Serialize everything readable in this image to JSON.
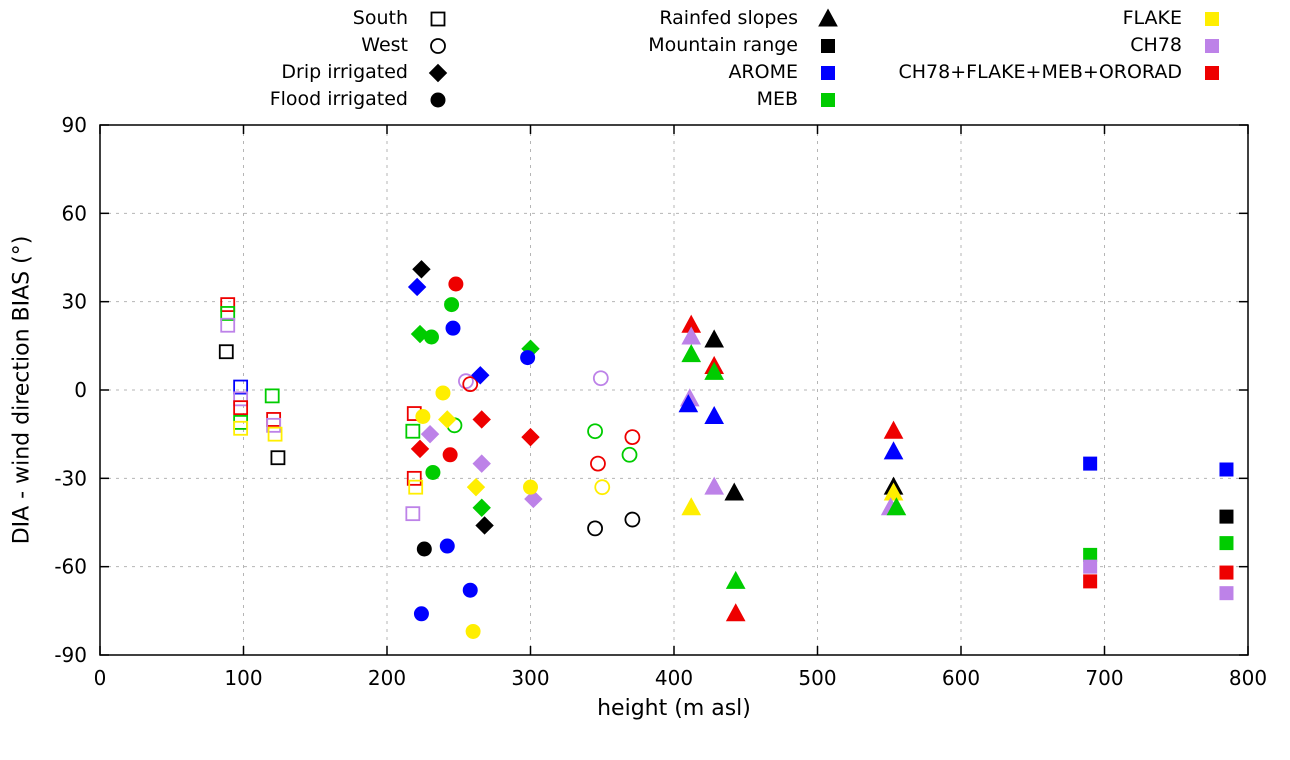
{
  "chart_data": {
    "type": "scatter",
    "title": "",
    "xlabel": "height (m asl)",
    "ylabel": "DIA - wind direction BIAS (°)",
    "xlim": [
      0,
      800
    ],
    "ylim": [
      -90,
      90
    ],
    "xticks": [
      0,
      100,
      200,
      300,
      400,
      500,
      600,
      700,
      800
    ],
    "yticks": [
      -90,
      -60,
      -30,
      0,
      30,
      60,
      90
    ],
    "grid": true,
    "legend_position": "top",
    "colors": {
      "black": "#000000",
      "red": "#ee0000",
      "green": "#00cc00",
      "blue": "#0000ff",
      "yellow": "#ffee00",
      "violet": "#bd82e8"
    },
    "legend": {
      "columns": [
        {
          "entries": [
            {
              "label": "South",
              "shape": "square",
              "fill": "open",
              "color": "black"
            },
            {
              "label": "West",
              "shape": "circle",
              "fill": "open",
              "color": "black"
            },
            {
              "label": "Drip irrigated",
              "shape": "diamond",
              "fill": "filled",
              "color": "black"
            },
            {
              "label": "Flood irrigated",
              "shape": "circle",
              "fill": "filled",
              "color": "black"
            }
          ]
        },
        {
          "entries": [
            {
              "label": "Rainfed slopes",
              "shape": "triangle",
              "fill": "filled",
              "color": "black"
            },
            {
              "label": "Mountain range",
              "shape": "square",
              "fill": "filled",
              "color": "black"
            },
            {
              "label": "AROME",
              "shape": "square",
              "fill": "filled",
              "color": "blue"
            },
            {
              "label": "MEB",
              "shape": "square",
              "fill": "filled",
              "color": "green"
            }
          ]
        },
        {
          "entries": [
            {
              "label": "FLAKE",
              "shape": "square",
              "fill": "filled",
              "color": "yellow"
            },
            {
              "label": "CH78",
              "shape": "square",
              "fill": "filled",
              "color": "violet"
            },
            {
              "label": "CH78+FLAKE+MEB+ORORAD",
              "shape": "square",
              "fill": "filled",
              "color": "red"
            }
          ]
        }
      ]
    },
    "points": [
      {
        "x": 89,
        "y": 29,
        "shape": "square",
        "fill": "open",
        "color": "red"
      },
      {
        "x": 89,
        "y": 26,
        "shape": "square",
        "fill": "open",
        "color": "green"
      },
      {
        "x": 89,
        "y": 22,
        "shape": "square",
        "fill": "open",
        "color": "violet"
      },
      {
        "x": 88,
        "y": 13,
        "shape": "square",
        "fill": "open",
        "color": "black"
      },
      {
        "x": 98,
        "y": 1,
        "shape": "square",
        "fill": "open",
        "color": "blue"
      },
      {
        "x": 98,
        "y": -3,
        "shape": "square",
        "fill": "open",
        "color": "violet"
      },
      {
        "x": 98,
        "y": -6,
        "shape": "square",
        "fill": "open",
        "color": "red"
      },
      {
        "x": 98,
        "y": -11,
        "shape": "square",
        "fill": "open",
        "color": "green"
      },
      {
        "x": 98,
        "y": -13,
        "shape": "square",
        "fill": "open",
        "color": "yellow"
      },
      {
        "x": 120,
        "y": -2,
        "shape": "square",
        "fill": "open",
        "color": "green"
      },
      {
        "x": 121,
        "y": -10,
        "shape": "square",
        "fill": "open",
        "color": "red"
      },
      {
        "x": 121,
        "y": -12,
        "shape": "square",
        "fill": "open",
        "color": "violet"
      },
      {
        "x": 122,
        "y": -15,
        "shape": "square",
        "fill": "open",
        "color": "yellow"
      },
      {
        "x": 124,
        "y": -23,
        "shape": "square",
        "fill": "open",
        "color": "black"
      },
      {
        "x": 219,
        "y": -8,
        "shape": "square",
        "fill": "open",
        "color": "red"
      },
      {
        "x": 218,
        "y": -14,
        "shape": "square",
        "fill": "open",
        "color": "green"
      },
      {
        "x": 219,
        "y": -30,
        "shape": "square",
        "fill": "open",
        "color": "red"
      },
      {
        "x": 220,
        "y": -33,
        "shape": "square",
        "fill": "open",
        "color": "yellow"
      },
      {
        "x": 218,
        "y": -42,
        "shape": "square",
        "fill": "open",
        "color": "violet"
      },
      {
        "x": 247,
        "y": -12,
        "shape": "circle",
        "fill": "open",
        "color": "green"
      },
      {
        "x": 255,
        "y": 3,
        "shape": "circle",
        "fill": "open",
        "color": "violet"
      },
      {
        "x": 258,
        "y": 2,
        "shape": "circle",
        "fill": "open",
        "color": "red"
      },
      {
        "x": 349,
        "y": 4,
        "shape": "circle",
        "fill": "open",
        "color": "violet"
      },
      {
        "x": 345,
        "y": -14,
        "shape": "circle",
        "fill": "open",
        "color": "green"
      },
      {
        "x": 347,
        "y": -25,
        "shape": "circle",
        "fill": "open",
        "color": "red"
      },
      {
        "x": 350,
        "y": -33,
        "shape": "circle",
        "fill": "open",
        "color": "yellow"
      },
      {
        "x": 345,
        "y": -47,
        "shape": "circle",
        "fill": "open",
        "color": "black"
      },
      {
        "x": 371,
        "y": -16,
        "shape": "circle",
        "fill": "open",
        "color": "red"
      },
      {
        "x": 369,
        "y": -22,
        "shape": "circle",
        "fill": "open",
        "color": "green"
      },
      {
        "x": 371,
        "y": -44,
        "shape": "circle",
        "fill": "open",
        "color": "black"
      },
      {
        "x": 224,
        "y": 41,
        "shape": "diamond",
        "fill": "filled",
        "color": "black"
      },
      {
        "x": 221,
        "y": 35,
        "shape": "diamond",
        "fill": "filled",
        "color": "blue"
      },
      {
        "x": 223,
        "y": 19,
        "shape": "diamond",
        "fill": "filled",
        "color": "green"
      },
      {
        "x": 230,
        "y": -15,
        "shape": "diamond",
        "fill": "filled",
        "color": "violet"
      },
      {
        "x": 223,
        "y": -20,
        "shape": "diamond",
        "fill": "filled",
        "color": "red"
      },
      {
        "x": 242,
        "y": -10,
        "shape": "diamond",
        "fill": "filled",
        "color": "yellow"
      },
      {
        "x": 265,
        "y": 5,
        "shape": "diamond",
        "fill": "filled",
        "color": "blue"
      },
      {
        "x": 266,
        "y": -10,
        "shape": "diamond",
        "fill": "filled",
        "color": "red"
      },
      {
        "x": 266,
        "y": -25,
        "shape": "diamond",
        "fill": "filled",
        "color": "violet"
      },
      {
        "x": 262,
        "y": -33,
        "shape": "diamond",
        "fill": "filled",
        "color": "yellow"
      },
      {
        "x": 266,
        "y": -40,
        "shape": "diamond",
        "fill": "filled",
        "color": "green"
      },
      {
        "x": 268,
        "y": -46,
        "shape": "diamond",
        "fill": "filled",
        "color": "black"
      },
      {
        "x": 300,
        "y": 14,
        "shape": "diamond",
        "fill": "filled",
        "color": "green"
      },
      {
        "x": 300,
        "y": -16,
        "shape": "diamond",
        "fill": "filled",
        "color": "red"
      },
      {
        "x": 302,
        "y": -37,
        "shape": "diamond",
        "fill": "filled",
        "color": "violet"
      },
      {
        "x": 231,
        "y": 18,
        "shape": "circle",
        "fill": "filled",
        "color": "green"
      },
      {
        "x": 225,
        "y": -9,
        "shape": "circle",
        "fill": "filled",
        "color": "yellow"
      },
      {
        "x": 232,
        "y": -28,
        "shape": "circle",
        "fill": "filled",
        "color": "green"
      },
      {
        "x": 226,
        "y": -54,
        "shape": "circle",
        "fill": "filled",
        "color": "black"
      },
      {
        "x": 224,
        "y": -76,
        "shape": "circle",
        "fill": "filled",
        "color": "blue"
      },
      {
        "x": 239,
        "y": -1,
        "shape": "circle",
        "fill": "filled",
        "color": "yellow"
      },
      {
        "x": 248,
        "y": 36,
        "shape": "circle",
        "fill": "filled",
        "color": "red"
      },
      {
        "x": 245,
        "y": 29,
        "shape": "circle",
        "fill": "filled",
        "color": "green"
      },
      {
        "x": 246,
        "y": 21,
        "shape": "circle",
        "fill": "filled",
        "color": "blue"
      },
      {
        "x": 244,
        "y": -22,
        "shape": "circle",
        "fill": "filled",
        "color": "red"
      },
      {
        "x": 242,
        "y": -53,
        "shape": "circle",
        "fill": "filled",
        "color": "blue"
      },
      {
        "x": 258,
        "y": -68,
        "shape": "circle",
        "fill": "filled",
        "color": "blue"
      },
      {
        "x": 260,
        "y": -82,
        "shape": "circle",
        "fill": "filled",
        "color": "yellow"
      },
      {
        "x": 298,
        "y": 11,
        "shape": "circle",
        "fill": "filled",
        "color": "blue"
      },
      {
        "x": 300,
        "y": -33,
        "shape": "circle",
        "fill": "filled",
        "color": "yellow"
      },
      {
        "x": 412,
        "y": 22,
        "shape": "triangle",
        "fill": "filled",
        "color": "red"
      },
      {
        "x": 412,
        "y": 18,
        "shape": "triangle",
        "fill": "filled",
        "color": "violet"
      },
      {
        "x": 412,
        "y": 12,
        "shape": "triangle",
        "fill": "filled",
        "color": "green"
      },
      {
        "x": 411,
        "y": -3,
        "shape": "triangle",
        "fill": "filled",
        "color": "violet"
      },
      {
        "x": 410,
        "y": -5,
        "shape": "triangle",
        "fill": "filled",
        "color": "blue"
      },
      {
        "x": 412,
        "y": -40,
        "shape": "triangle",
        "fill": "filled",
        "color": "yellow"
      },
      {
        "x": 428,
        "y": 17,
        "shape": "triangle",
        "fill": "filled",
        "color": "black"
      },
      {
        "x": 428,
        "y": 8,
        "shape": "triangle",
        "fill": "filled",
        "color": "red"
      },
      {
        "x": 428,
        "y": 6,
        "shape": "triangle",
        "fill": "filled",
        "color": "green"
      },
      {
        "x": 428,
        "y": -9,
        "shape": "triangle",
        "fill": "filled",
        "color": "blue"
      },
      {
        "x": 428,
        "y": -33,
        "shape": "triangle",
        "fill": "filled",
        "color": "violet"
      },
      {
        "x": 442,
        "y": -35,
        "shape": "triangle",
        "fill": "filled",
        "color": "black"
      },
      {
        "x": 443,
        "y": -65,
        "shape": "triangle",
        "fill": "filled",
        "color": "green"
      },
      {
        "x": 443,
        "y": -76,
        "shape": "triangle",
        "fill": "filled",
        "color": "red"
      },
      {
        "x": 553,
        "y": -14,
        "shape": "triangle",
        "fill": "filled",
        "color": "red"
      },
      {
        "x": 553,
        "y": -21,
        "shape": "triangle",
        "fill": "filled",
        "color": "blue"
      },
      {
        "x": 553,
        "y": -33,
        "shape": "triangle",
        "fill": "filled",
        "color": "black"
      },
      {
        "x": 553,
        "y": -35,
        "shape": "triangle",
        "fill": "filled",
        "color": "yellow"
      },
      {
        "x": 551,
        "y": -40,
        "shape": "triangle",
        "fill": "filled",
        "color": "violet"
      },
      {
        "x": 555,
        "y": -40,
        "shape": "triangle",
        "fill": "filled",
        "color": "green"
      },
      {
        "x": 690,
        "y": -25,
        "shape": "square",
        "fill": "filled",
        "color": "blue"
      },
      {
        "x": 690,
        "y": -56,
        "shape": "square",
        "fill": "filled",
        "color": "green"
      },
      {
        "x": 690,
        "y": -60,
        "shape": "square",
        "fill": "filled",
        "color": "violet"
      },
      {
        "x": 690,
        "y": -65,
        "shape": "square",
        "fill": "filled",
        "color": "red"
      },
      {
        "x": 785,
        "y": -27,
        "shape": "square",
        "fill": "filled",
        "color": "blue"
      },
      {
        "x": 785,
        "y": -43,
        "shape": "square",
        "fill": "filled",
        "color": "black"
      },
      {
        "x": 785,
        "y": -52,
        "shape": "square",
        "fill": "filled",
        "color": "green"
      },
      {
        "x": 785,
        "y": -62,
        "shape": "square",
        "fill": "filled",
        "color": "red"
      },
      {
        "x": 785,
        "y": -69,
        "shape": "square",
        "fill": "filled",
        "color": "violet"
      }
    ]
  }
}
